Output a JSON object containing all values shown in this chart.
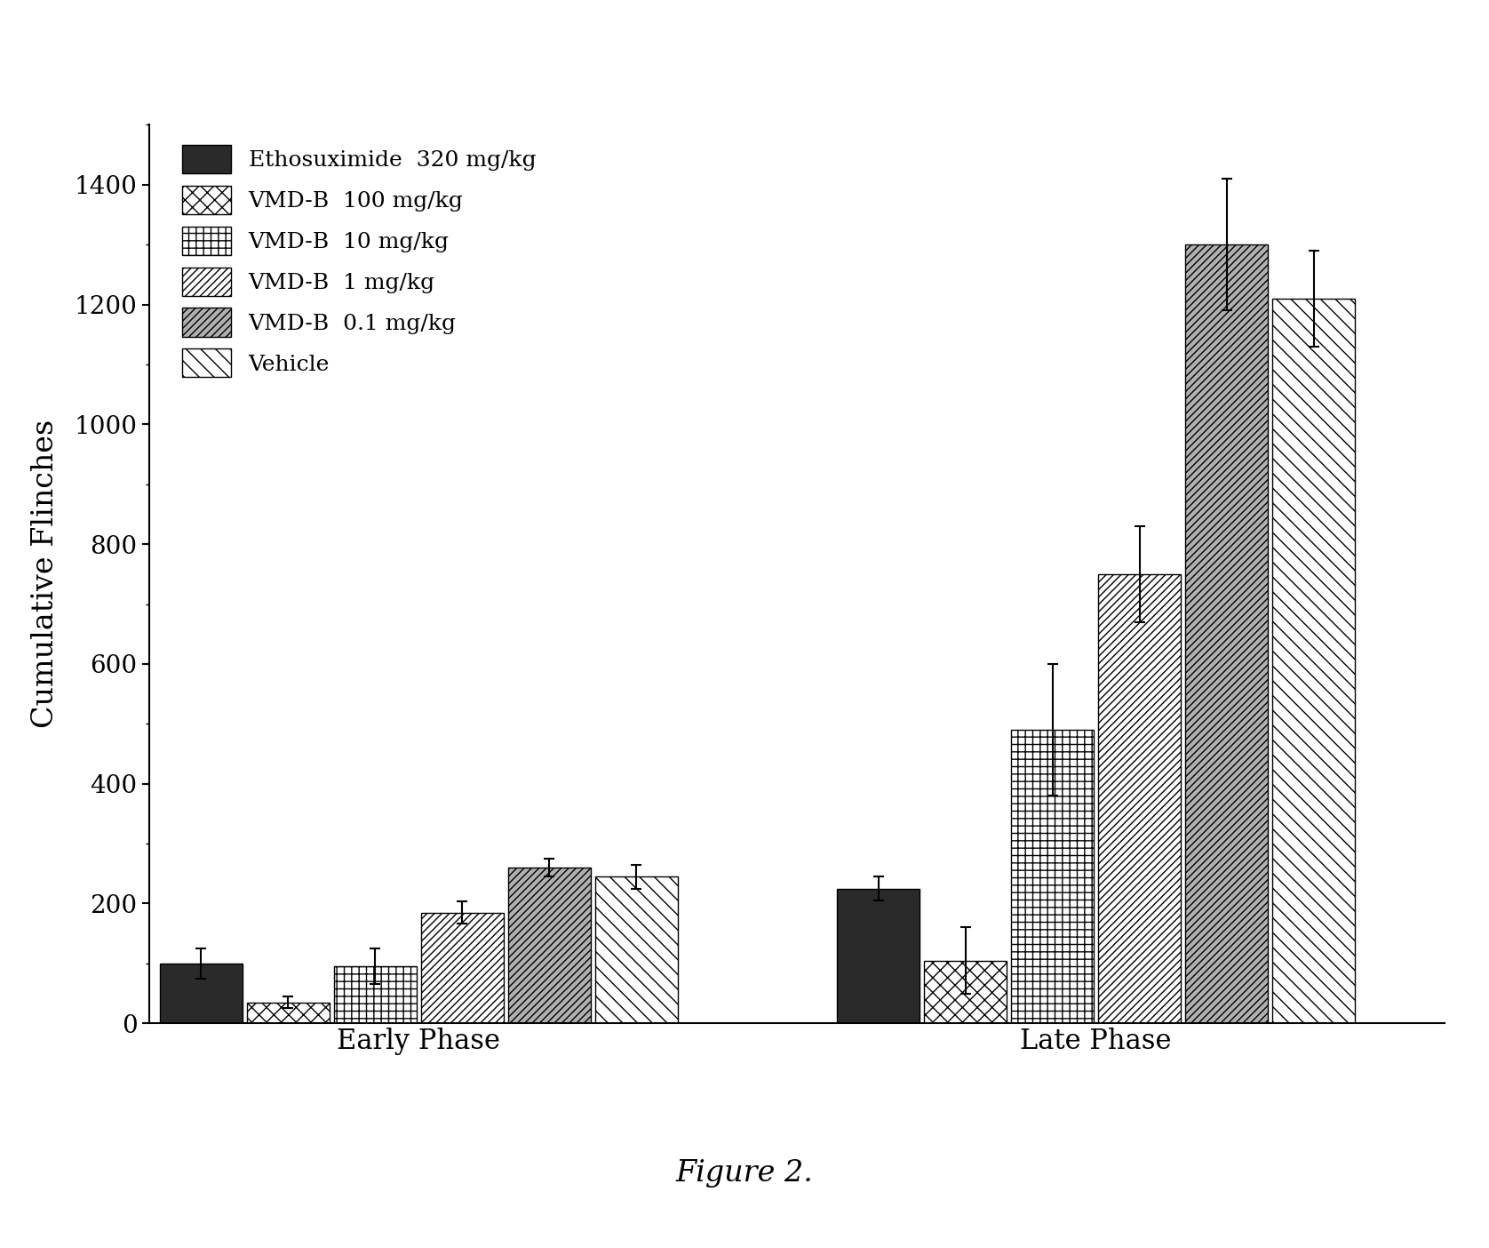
{
  "title": "Figure 2.",
  "ylabel": "Cumulative Flinches",
  "ylim": [
    0,
    1500
  ],
  "yticks": [
    0,
    200,
    400,
    600,
    800,
    1000,
    1200,
    1400
  ],
  "groups": [
    "Early Phase",
    "Late Phase"
  ],
  "series": [
    {
      "label": "Ethosuximide  320 mg/kg",
      "hatch": "",
      "facecolor": "#2a2a2a",
      "edgecolor": "#000000",
      "values": [
        100,
        225
      ],
      "errors": [
        25,
        20
      ]
    },
    {
      "label": "VMD-B  100 mg/kg",
      "hatch": "xx",
      "facecolor": "#ffffff",
      "edgecolor": "#000000",
      "values": [
        35,
        105
      ],
      "errors": [
        10,
        55
      ]
    },
    {
      "label": "VMD-B  10 mg/kg",
      "hatch": "++",
      "facecolor": "#ffffff",
      "edgecolor": "#000000",
      "values": [
        95,
        490
      ],
      "errors": [
        30,
        110
      ]
    },
    {
      "label": "VMD-B  1 mg/kg",
      "hatch": "////",
      "facecolor": "#ffffff",
      "edgecolor": "#000000",
      "values": [
        185,
        750
      ],
      "errors": [
        18,
        80
      ]
    },
    {
      "label": "VMD-B  0.1 mg/kg",
      "hatch": "////",
      "facecolor": "#bbbbbb",
      "edgecolor": "#000000",
      "values": [
        260,
        1300
      ],
      "errors": [
        15,
        110
      ]
    },
    {
      "label": "Vehicle",
      "hatch": "\\\\",
      "facecolor": "#ffffff",
      "edgecolor": "#000000",
      "values": [
        245,
        1210
      ],
      "errors": [
        20,
        80
      ]
    }
  ],
  "bar_width": 0.09,
  "background_color": "#ffffff",
  "figsize": [
    16.76,
    14.04
  ],
  "dpi": 100
}
